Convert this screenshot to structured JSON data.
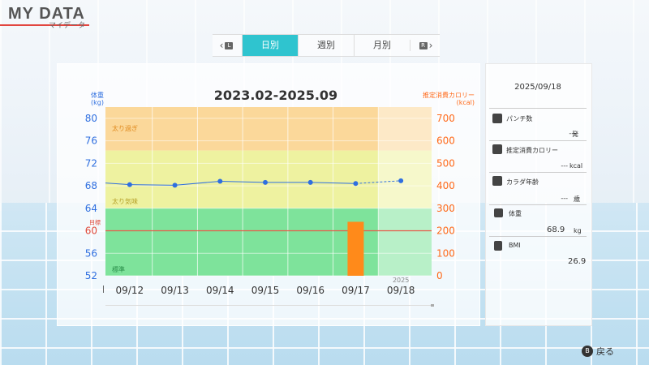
{
  "header": {
    "title": "MY DATA",
    "subtitle": "マイデータ"
  },
  "tabs": {
    "left_key": "L",
    "right_key": "R",
    "items": [
      {
        "label": "日別",
        "active": true
      },
      {
        "label": "週別",
        "active": false
      },
      {
        "label": "月別",
        "active": false
      }
    ]
  },
  "chart_title": "2023.02-2025.09",
  "left_axis_title": [
    "体重",
    "(kg)"
  ],
  "right_axis_title": [
    "推定消費カロリー",
    "(kcal)"
  ],
  "zones": {
    "over": "太り過ぎ",
    "slightly": "太り気味",
    "target": "目標",
    "standard": "標準"
  },
  "year_marker": "2025",
  "chart_data": {
    "type": "line",
    "x": [
      "09/12",
      "09/13",
      "09/14",
      "09/15",
      "09/16",
      "09/17",
      "09/18"
    ],
    "series": [
      {
        "axis": "left",
        "type": "line",
        "values": [
          68.2,
          68.1,
          68.8,
          68.6,
          68.6,
          68.4,
          68.9
        ],
        "color": "#2f6fe0"
      },
      {
        "axis": "right",
        "type": "bar",
        "values": [
          0,
          0,
          0,
          0,
          0,
          240,
          0
        ],
        "color": "#ff8a1a"
      }
    ],
    "ylabel_left": "体重(kg)",
    "ylabel_right": "推定消費カロリー(kcal)",
    "ylim_left": [
      52,
      82
    ],
    "yticks_left": [
      52,
      56,
      60,
      64,
      68,
      72,
      76,
      80
    ],
    "ylim_right": [
      0,
      750
    ],
    "yticks_right": [
      0,
      100,
      200,
      300,
      400,
      500,
      600,
      700
    ],
    "target_weight": 60
  },
  "side": {
    "date": "2025/09/18",
    "items": [
      {
        "label": "パンチ数",
        "value": "---",
        "unit": "発"
      },
      {
        "label": "推定消費カロリー",
        "value": "---",
        "unit": "kcal"
      },
      {
        "label": "カラダ年齢",
        "value": "---",
        "unit": "歳"
      },
      {
        "label": "体重",
        "value": "68.9",
        "unit": "kg"
      },
      {
        "label": "BMI",
        "value": "26.9",
        "unit": ""
      }
    ]
  },
  "back_label": "戻る",
  "back_key": "B"
}
